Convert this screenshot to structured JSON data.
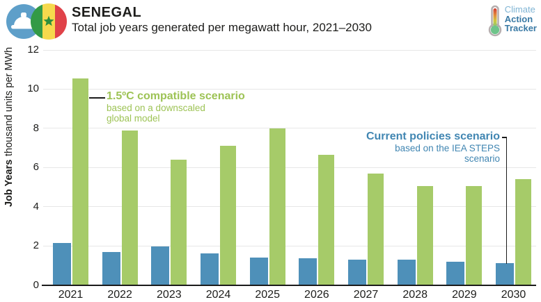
{
  "header": {
    "country": "SENEGAL",
    "subtitle": "Total job years generated per megawatt hour, 2021–2030"
  },
  "logo": {
    "line1": "Climate",
    "line2": "Action",
    "line3": "Tracker",
    "icon": "thermometer-icon"
  },
  "annotations": {
    "compatible": {
      "title": "1.5ºC compatible scenario",
      "line1": "based on a downscaled",
      "line2": "global model"
    },
    "current": {
      "title": "Current policies scenario",
      "line1": "based on the IEA STEPS",
      "line2": "scenario"
    }
  },
  "chart_data": {
    "type": "bar",
    "title": "Total job years generated per megawatt hour, 2021–2030",
    "categories": [
      "2021",
      "2022",
      "2023",
      "2024",
      "2025",
      "2026",
      "2027",
      "2028",
      "2029",
      "2030"
    ],
    "series": [
      {
        "name": "Current policies scenario (based on the IEA STEPS scenario)",
        "color": "#4e90b9",
        "values": [
          2.15,
          1.7,
          1.95,
          1.6,
          1.4,
          1.35,
          1.3,
          1.3,
          1.2,
          1.1
        ]
      },
      {
        "name": "1.5ºC compatible scenario (based on a downscaled global model)",
        "color": "#a6cb69",
        "values": [
          10.55,
          7.9,
          6.4,
          7.1,
          8.0,
          6.65,
          5.7,
          5.05,
          5.05,
          5.4
        ]
      }
    ],
    "ylabel_bold": "Job Years",
    "ylabel_rest": " thousand units per MWh",
    "xlabel": "",
    "yticks": [
      0,
      2,
      4,
      6,
      8,
      10,
      12
    ],
    "ylim": [
      0,
      12
    ],
    "grid": true,
    "legend_position": "inline-annotations"
  },
  "colors": {
    "bar_current_policies": "#4e90b9",
    "bar_15c_compatible": "#a6cb69",
    "annotation_green_text": "#9dc355",
    "annotation_blue_text": "#4186b2",
    "axis": "#1a1a1a",
    "gridline": "#e7e7e7",
    "hardhat_circle": "#5e9fc9",
    "flag_green": "#339a46",
    "flag_yellow": "#f6d94d",
    "flag_red": "#e04249"
  }
}
